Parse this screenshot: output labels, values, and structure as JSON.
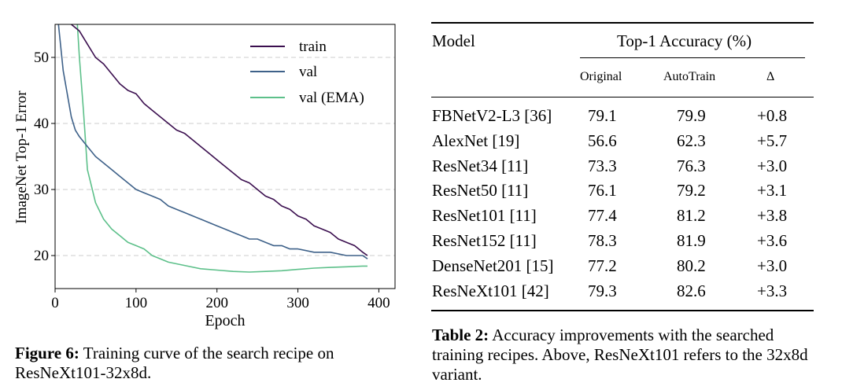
{
  "figure": {
    "caption_label": "Figure 6:",
    "caption_text": " Training curve of the search recipe on ResNeXt101-32x8d.",
    "chart_data": {
      "type": "line",
      "xlabel": "Epoch",
      "ylabel": "ImageNet Top-1 Error",
      "xlim": [
        0,
        420
      ],
      "ylim": [
        15,
        55
      ],
      "xticks": [
        0,
        100,
        200,
        300,
        400
      ],
      "yticks": [
        20,
        30,
        40,
        50
      ],
      "grid": "horizontal dashed",
      "legend_position": "top-right",
      "series": [
        {
          "name": "train",
          "color": "#3b0f4f",
          "x": [
            0,
            10,
            20,
            30,
            40,
            50,
            60,
            70,
            80,
            90,
            100,
            110,
            120,
            130,
            140,
            150,
            160,
            170,
            180,
            190,
            200,
            210,
            220,
            230,
            240,
            250,
            260,
            270,
            280,
            290,
            300,
            310,
            320,
            330,
            340,
            350,
            360,
            370,
            380,
            386
          ],
          "y": [
            60,
            58,
            55,
            54,
            52,
            50,
            49,
            47.5,
            46,
            45,
            44.5,
            43,
            42,
            41,
            40,
            39,
            38.5,
            37.5,
            36.5,
            35.5,
            34.5,
            33.5,
            32.5,
            31.5,
            31,
            30,
            29,
            28.5,
            27.5,
            27,
            26,
            25.5,
            24.5,
            24,
            23.5,
            22.5,
            22,
            21.5,
            20.5,
            20
          ]
        },
        {
          "name": "val",
          "color": "#3e6189",
          "x": [
            0,
            10,
            20,
            25,
            30,
            40,
            50,
            60,
            70,
            80,
            90,
            100,
            110,
            120,
            130,
            140,
            150,
            160,
            170,
            180,
            190,
            200,
            210,
            220,
            230,
            240,
            250,
            260,
            270,
            280,
            290,
            300,
            320,
            340,
            360,
            380,
            386
          ],
          "y": [
            60,
            48,
            41,
            39,
            38,
            36.5,
            35,
            34,
            33,
            32,
            31,
            30,
            29.5,
            29,
            28.5,
            27.5,
            27,
            26.5,
            26,
            25.5,
            25,
            24.5,
            24,
            23.5,
            23,
            22.5,
            22.5,
            22,
            21.5,
            21.5,
            21,
            21,
            20.5,
            20.5,
            20,
            20,
            19.5
          ]
        },
        {
          "name": "val (EMA)",
          "color": "#5dc08a",
          "x": [
            0,
            15,
            25,
            30,
            35,
            40,
            45,
            50,
            60,
            70,
            80,
            90,
            100,
            110,
            120,
            140,
            160,
            180,
            200,
            220,
            240,
            260,
            280,
            300,
            320,
            340,
            360,
            380,
            386
          ],
          "y": [
            60,
            60,
            60,
            50,
            42,
            33,
            30.5,
            28,
            25.5,
            24,
            23,
            22,
            21.5,
            21,
            20,
            19,
            18.5,
            18,
            17.8,
            17.6,
            17.5,
            17.6,
            17.7,
            17.9,
            18.1,
            18.2,
            18.3,
            18.4,
            18.4
          ]
        }
      ]
    }
  },
  "table": {
    "header_model": "Model",
    "header_group": "Top-1 Accuracy (%)",
    "sub_original": "Original",
    "sub_autotrain": "AutoTrain",
    "sub_delta": "Δ",
    "rows": [
      {
        "model": "FBNetV2-L3 [36]",
        "original": "79.1",
        "autotrain": "79.9",
        "delta": "+0.8"
      },
      {
        "model": "AlexNet [19]",
        "original": "56.6",
        "autotrain": "62.3",
        "delta": "+5.7"
      },
      {
        "model": "ResNet34 [11]",
        "original": "73.3",
        "autotrain": "76.3",
        "delta": "+3.0"
      },
      {
        "model": "ResNet50 [11]",
        "original": "76.1",
        "autotrain": "79.2",
        "delta": "+3.1"
      },
      {
        "model": "ResNet101 [11]",
        "original": "77.4",
        "autotrain": "81.2",
        "delta": "+3.8"
      },
      {
        "model": "ResNet152 [11]",
        "original": "78.3",
        "autotrain": "81.9",
        "delta": "+3.6"
      },
      {
        "model": "DenseNet201 [15]",
        "original": "77.2",
        "autotrain": "80.2",
        "delta": "+3.0"
      },
      {
        "model": "ResNeXt101 [42]",
        "original": "79.3",
        "autotrain": "82.6",
        "delta": "+3.3"
      }
    ],
    "caption_label": "Table 2:",
    "caption_text": " Accuracy improvements with the searched training recipes. Above, ResNeXt101 refers to the 32x8d variant."
  }
}
